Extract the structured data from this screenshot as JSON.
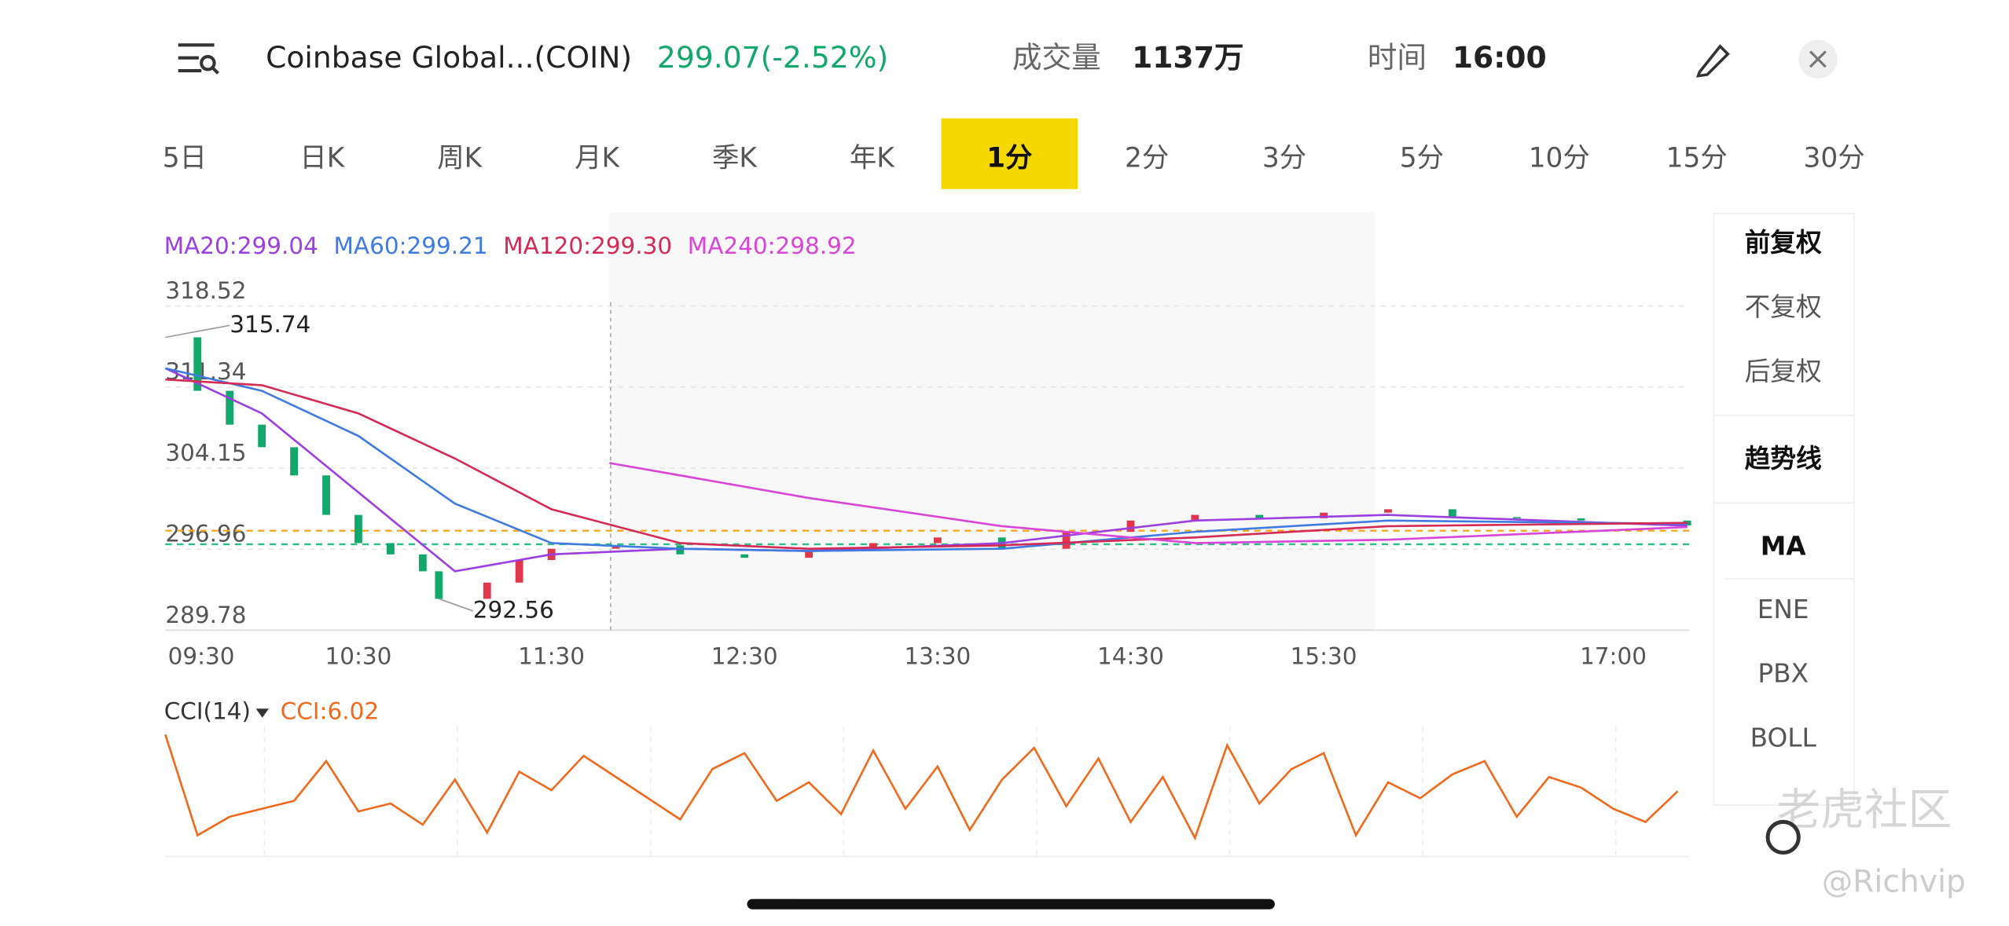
{
  "header": {
    "title": "Coinbase Global...(COIN)",
    "price": "299.07(-2.52%)",
    "volume_label": "成交量",
    "volume": "1137万",
    "time_label": "时间",
    "time": "16:00"
  },
  "tabs": [
    "5日",
    "日K",
    "周K",
    "月K",
    "季K",
    "年K",
    "1分",
    "2分",
    "3分",
    "5分",
    "10分",
    "15分",
    "30分"
  ],
  "active_tab": 6,
  "side_panel": [
    "前复权",
    "不复权",
    "后复权",
    "趋势线",
    "MA",
    "ENE",
    "PBX",
    "BOLL"
  ],
  "watermark": [
    "老虎社区",
    "@Richvip"
  ],
  "chart_data": [
    {
      "type": "candlestick",
      "x": [
        0,
        10,
        20,
        30,
        40,
        50,
        60,
        70,
        80,
        85,
        100,
        110,
        120,
        140,
        160,
        180,
        200,
        220,
        240,
        260,
        280,
        300,
        320,
        340,
        360,
        380,
        400,
        420,
        440,
        473
      ],
      "values": [
        315.74,
        311,
        308,
        306,
        303.5,
        300,
        297.5,
        296.5,
        295,
        292.56,
        294,
        296,
        297,
        297.3,
        296.5,
        296.2,
        296.8,
        297.5,
        298,
        297,
        298.5,
        299.5,
        300,
        299.7,
        300.2,
        300.5,
        299.8,
        299.7,
        299.5,
        299.07
      ],
      "up_color": "#e0374a",
      "down_color": "#13a86b",
      "series": [
        {
          "name": "MA20:299.04",
          "color": "#9b3fe0",
          "x": [
            0,
            30,
            60,
            90,
            120,
            160,
            200,
            260,
            320,
            380,
            473
          ],
          "values": [
            313,
            309,
            302,
            295,
            296.5,
            297,
            296.8,
            297.5,
            299.5,
            300,
            299.04
          ]
        },
        {
          "name": "MA60:299.21",
          "color": "#3f7be0",
          "x": [
            0,
            30,
            60,
            90,
            120,
            160,
            200,
            260,
            320,
            380,
            473
          ],
          "values": [
            313,
            311,
            307,
            301,
            297.5,
            297,
            296.8,
            297,
            298.5,
            299.5,
            299.21
          ]
        },
        {
          "name": "MA120:299.30",
          "color": "#d42a55",
          "x": [
            0,
            30,
            60,
            90,
            120,
            160,
            200,
            260,
            320,
            380,
            473
          ],
          "values": [
            312,
            311.5,
            309,
            305,
            300.5,
            297.5,
            297,
            297.3,
            298,
            299,
            299.3
          ]
        },
        {
          "name": "MA240:298.92",
          "color": "#d845d8",
          "x": [
            138,
            200,
            260,
            320,
            380,
            473
          ],
          "values": [
            304.6,
            301.5,
            299,
            297.5,
            297.8,
            298.92
          ]
        }
      ],
      "annotations": [
        {
          "value": 315.74,
          "x": 0
        },
        {
          "value": 292.56,
          "x": 85
        }
      ],
      "ref_lines": [
        {
          "value": 298.6,
          "color": "#f5a623"
        },
        {
          "value": 297.4,
          "color": "#2ebd85"
        }
      ],
      "xlim": [
        0,
        473.6
      ],
      "xticks": [
        {
          "value": 0,
          "label": "09:30"
        },
        {
          "value": 60,
          "label": "10:30"
        },
        {
          "value": 120,
          "label": "11:30"
        },
        {
          "value": 180,
          "label": "12:30"
        },
        {
          "value": 240,
          "label": "13:30"
        },
        {
          "value": 300,
          "label": "14:30"
        },
        {
          "value": 360,
          "label": "15:30"
        },
        {
          "value": 450,
          "label": "17:00"
        }
      ],
      "ylim": [
        289.78,
        322.5
      ],
      "yticks": [
        289.78,
        296.96,
        304.15,
        311.34,
        318.52
      ],
      "grid": true
    },
    {
      "type": "line",
      "title": "CCI(14)",
      "x": [
        0,
        10,
        20,
        30,
        40,
        50,
        60,
        70,
        80,
        90,
        100,
        110,
        120,
        130,
        140,
        150,
        160,
        170,
        180,
        190,
        200,
        210,
        220,
        230,
        240,
        250,
        260,
        270,
        280,
        290,
        300,
        310,
        320,
        330,
        340,
        350,
        360,
        370,
        380,
        390,
        400,
        410,
        420,
        430,
        440,
        450,
        460,
        470
      ],
      "series": [
        {
          "name": "CCI:6.02",
          "color": "#f06a1e",
          "values": [
            220,
            -160,
            -90,
            -60,
            -30,
            120,
            -70,
            -40,
            -120,
            50,
            -150,
            80,
            10,
            140,
            60,
            -20,
            -100,
            90,
            150,
            -30,
            40,
            -80,
            160,
            -60,
            100,
            -140,
            50,
            170,
            -50,
            130,
            -110,
            60,
            -170,
            180,
            -40,
            90,
            150,
            -160,
            40,
            -20,
            70,
            120,
            -90,
            60,
            20,
            -60,
            -110,
            6.02
          ]
        }
      ],
      "xlim": [
        0,
        473.6
      ],
      "ylim": [
        -250,
        250
      ]
    }
  ]
}
